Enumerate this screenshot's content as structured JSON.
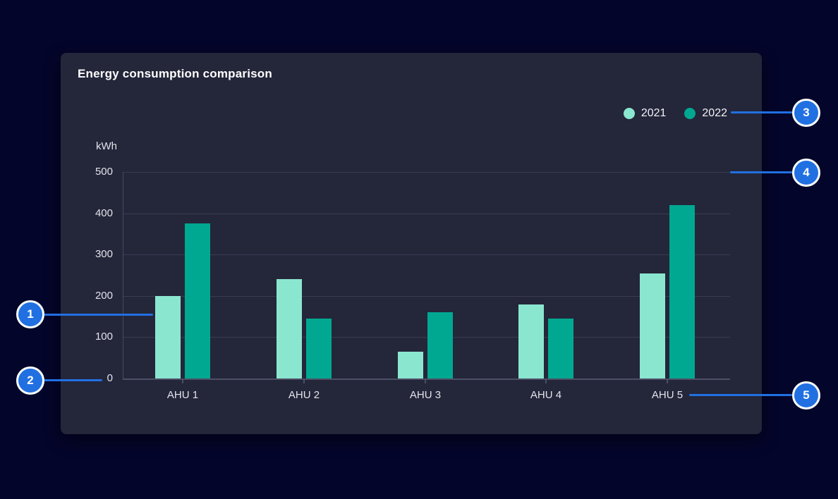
{
  "card": {
    "title": "Energy consumption comparison"
  },
  "legend": [
    {
      "label": "2021",
      "color": "#8be6d0"
    },
    {
      "label": "2022",
      "color": "#00a891"
    }
  ],
  "chart_data": {
    "type": "bar",
    "title": "Energy consumption comparison",
    "categories": [
      "AHU 1",
      "AHU 2",
      "AHU 3",
      "AHU 4",
      "AHU 5"
    ],
    "series": [
      {
        "name": "2021",
        "color": "#8be6d0",
        "values": [
          200,
          240,
          65,
          180,
          255
        ]
      },
      {
        "name": "2022",
        "color": "#00a891",
        "values": [
          375,
          145,
          160,
          145,
          420
        ]
      }
    ],
    "ylabel": "kWh",
    "ylim": [
      0,
      500
    ],
    "yticks": [
      0,
      100,
      200,
      300,
      400,
      500
    ],
    "grid": "horizontal",
    "legend_position": "top-right"
  },
  "callouts": [
    {
      "number": "1"
    },
    {
      "number": "2"
    },
    {
      "number": "3"
    },
    {
      "number": "4"
    },
    {
      "number": "5"
    }
  ],
  "colors": {
    "accent_blue": "#2170e2",
    "series_2021": "#8be6d0",
    "series_2022": "#00a891",
    "card_background": "#24263a",
    "page_background": "#04052a",
    "gridline": "#3a3d52",
    "axis": "#4c4f65"
  }
}
